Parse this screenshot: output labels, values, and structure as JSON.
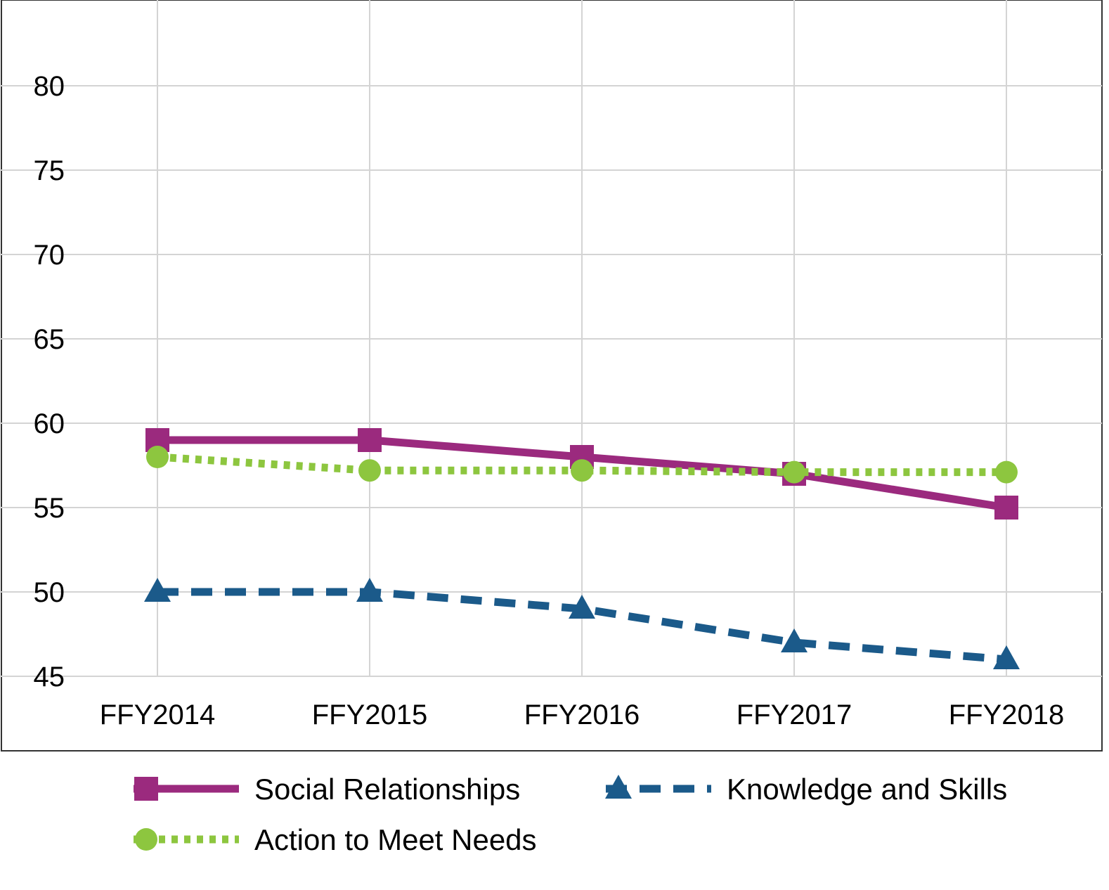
{
  "chart_data": {
    "type": "line",
    "title": "",
    "xlabel": "",
    "ylabel": "",
    "categories": [
      "FFY2014",
      "FFY2015",
      "FFY2016",
      "FFY2017",
      "FFY2018"
    ],
    "ylim": [
      45,
      85
    ],
    "yticks": [
      45,
      50,
      55,
      60,
      65,
      70,
      75,
      80
    ],
    "grid": true,
    "legend_position": "bottom",
    "series": [
      {
        "name": "Social Relationships",
        "values": [
          59,
          59,
          58,
          57,
          55
        ],
        "color": "#9b2a7e",
        "line_style": "solid",
        "marker": "square"
      },
      {
        "name": "Knowledge and Skills",
        "values": [
          50,
          50,
          49,
          47,
          46
        ],
        "color": "#1b5a8a",
        "line_style": "dashed",
        "marker": "triangle"
      },
      {
        "name": "Action to Meet Needs",
        "values": [
          58,
          57.2,
          57.2,
          57.1,
          57.1
        ],
        "color": "#8dc63f",
        "line_style": "dotted",
        "marker": "circle"
      }
    ]
  }
}
